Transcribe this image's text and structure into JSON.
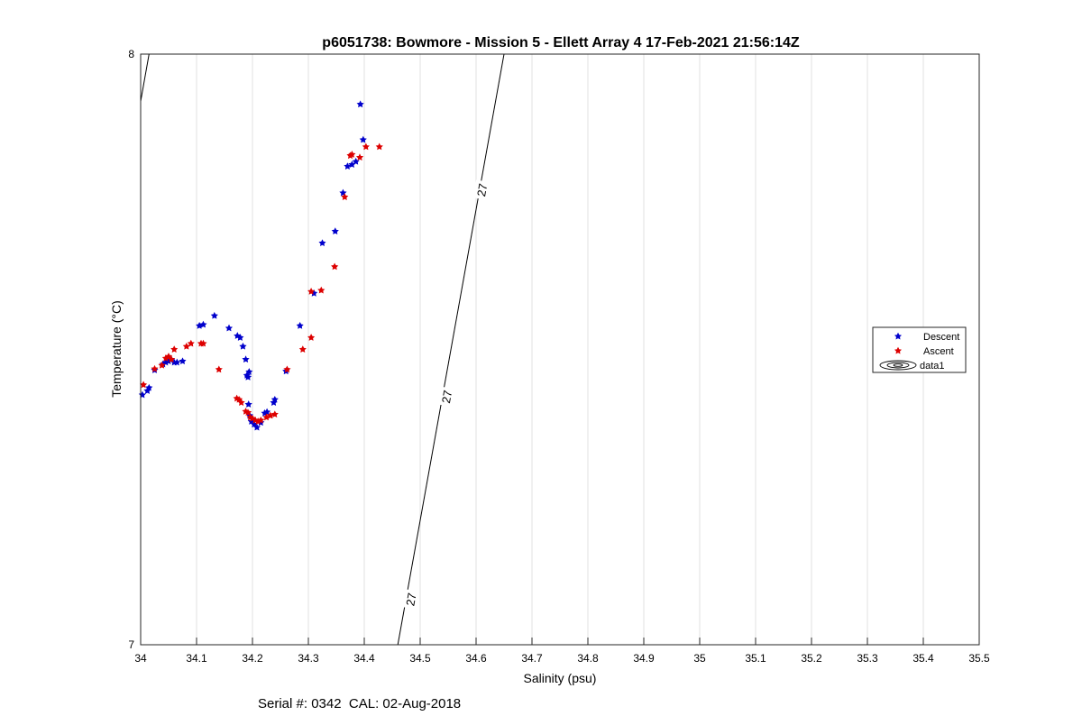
{
  "chart_data": {
    "type": "scatter",
    "title": "p6051738: Bowmore - Mission 5 - Ellett Array 4 17-Feb-2021 21:56:14Z",
    "xlabel": "Salinity (psu)",
    "ylabel": "Temperature (°C)",
    "xlim": [
      34,
      35.5
    ],
    "ylim": [
      7,
      8
    ],
    "x_ticks": [
      "34",
      "34.1",
      "34.2",
      "34.3",
      "34.4",
      "34.5",
      "34.6",
      "34.7",
      "34.8",
      "34.9",
      "35",
      "35.1",
      "35.2",
      "35.3",
      "35.4",
      "35.5"
    ],
    "y_ticks": [
      "7",
      "8"
    ],
    "grid": "vertical",
    "legend_position": "right",
    "series": [
      {
        "name": "Descent",
        "color": "#0000cc",
        "marker": "pentagram",
        "points": [
          [
            34.003,
            7.423
          ],
          [
            34.012,
            7.43
          ],
          [
            34.015,
            7.435
          ],
          [
            34.025,
            7.465
          ],
          [
            34.04,
            7.475
          ],
          [
            34.045,
            7.478
          ],
          [
            34.05,
            7.48
          ],
          [
            34.055,
            7.483
          ],
          [
            34.06,
            7.478
          ],
          [
            34.065,
            7.478
          ],
          [
            34.075,
            7.48
          ],
          [
            34.105,
            7.54
          ],
          [
            34.112,
            7.542
          ],
          [
            34.132,
            7.557
          ],
          [
            34.158,
            7.536
          ],
          [
            34.173,
            7.523
          ],
          [
            34.178,
            7.52
          ],
          [
            34.183,
            7.505
          ],
          [
            34.188,
            7.483
          ],
          [
            34.19,
            7.456
          ],
          [
            34.192,
            7.453
          ],
          [
            34.194,
            7.462
          ],
          [
            34.193,
            7.407
          ],
          [
            34.195,
            7.388
          ],
          [
            34.198,
            7.378
          ],
          [
            34.203,
            7.373
          ],
          [
            34.208,
            7.368
          ],
          [
            34.215,
            7.376
          ],
          [
            34.222,
            7.392
          ],
          [
            34.226,
            7.394
          ],
          [
            34.238,
            7.41
          ],
          [
            34.24,
            7.415
          ],
          [
            34.26,
            7.463
          ],
          [
            34.285,
            7.54
          ],
          [
            34.31,
            7.595
          ],
          [
            34.325,
            7.68
          ],
          [
            34.348,
            7.7
          ],
          [
            34.362,
            7.765
          ],
          [
            34.37,
            7.81
          ],
          [
            34.378,
            7.813
          ],
          [
            34.385,
            7.818
          ],
          [
            34.393,
            7.915
          ],
          [
            34.398,
            7.855
          ]
        ]
      },
      {
        "name": "Ascent",
        "color": "#dd0000",
        "marker": "pentagram",
        "points": [
          [
            34.005,
            7.44
          ],
          [
            34.025,
            7.467
          ],
          [
            34.038,
            7.473
          ],
          [
            34.045,
            7.485
          ],
          [
            34.05,
            7.488
          ],
          [
            34.055,
            7.483
          ],
          [
            34.06,
            7.5
          ],
          [
            34.082,
            7.505
          ],
          [
            34.09,
            7.51
          ],
          [
            34.108,
            7.51
          ],
          [
            34.112,
            7.51
          ],
          [
            34.14,
            7.466
          ],
          [
            34.172,
            7.417
          ],
          [
            34.176,
            7.415
          ],
          [
            34.18,
            7.41
          ],
          [
            34.188,
            7.395
          ],
          [
            34.192,
            7.393
          ],
          [
            34.196,
            7.385
          ],
          [
            34.2,
            7.383
          ],
          [
            34.205,
            7.38
          ],
          [
            34.21,
            7.378
          ],
          [
            34.215,
            7.38
          ],
          [
            34.225,
            7.385
          ],
          [
            34.232,
            7.388
          ],
          [
            34.24,
            7.39
          ],
          [
            34.262,
            7.466
          ],
          [
            34.29,
            7.5
          ],
          [
            34.305,
            7.52
          ],
          [
            34.305,
            7.598
          ],
          [
            34.323,
            7.6
          ],
          [
            34.347,
            7.64
          ],
          [
            34.365,
            7.758
          ],
          [
            34.375,
            7.828
          ],
          [
            34.378,
            7.83
          ],
          [
            34.392,
            7.825
          ],
          [
            34.403,
            7.843
          ],
          [
            34.427,
            7.843
          ]
        ]
      }
    ],
    "contour": {
      "name": "data1",
      "lines": [
        {
          "points": [
            [
              34.0,
              7.92
            ],
            [
              34.015,
              8.0
            ]
          ]
        },
        {
          "level_label": "27",
          "points": [
            [
              34.46,
              7.0
            ],
            [
              34.65,
              8.0
            ]
          ],
          "label_positions": [
            [
              34.483,
              7.077
            ],
            [
              34.547,
              7.42
            ],
            [
              34.61,
              7.77
            ]
          ]
        }
      ]
    },
    "annotation": "Serial #: 0342  CAL: 02-Aug-2018"
  }
}
